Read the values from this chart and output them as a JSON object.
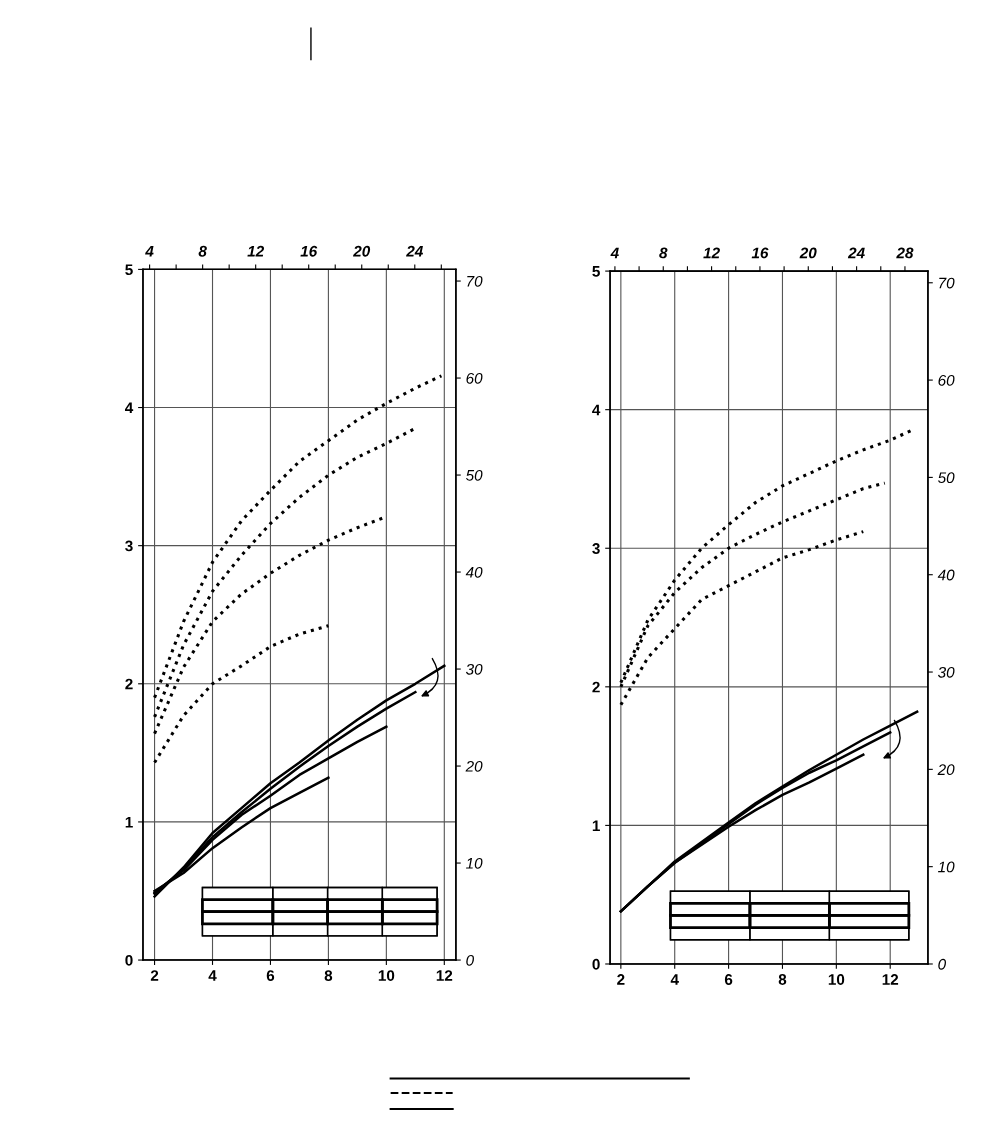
{
  "chart_data": [
    {
      "type": "line",
      "line_style": "solid",
      "marker": "none",
      "grid": true,
      "xlim": [
        1.6,
        12.4
      ],
      "xticks": [
        2,
        4,
        6,
        8,
        10,
        12
      ],
      "ylim": [
        0,
        5
      ],
      "yticks": [
        0,
        1,
        2,
        3,
        4,
        5
      ],
      "x2lim": [
        3.5,
        27.1
      ],
      "x2ticks": [
        4,
        {
          "value": 6,
          "label": null
        },
        8,
        {
          "value": 10,
          "label": null
        },
        12,
        {
          "value": 14,
          "label": null
        },
        16,
        {
          "value": 18,
          "label": null
        },
        20,
        {
          "value": 22,
          "label": null
        },
        24,
        {
          "value": 26,
          "label": null
        }
      ],
      "y2lim": [
        0,
        71.2
      ],
      "y2ticks": [
        0,
        10,
        20,
        30,
        40,
        50,
        60,
        70
      ],
      "series": [
        {
          "color": "#000000",
          "line_style": "dotted",
          "x": [
            2,
            3,
            4,
            5,
            6,
            7,
            8,
            9,
            10,
            11,
            11.9
          ],
          "values": [
            1.9,
            2.45,
            2.88,
            3.18,
            3.4,
            3.61,
            3.76,
            3.91,
            4.03,
            4.14,
            4.23
          ]
        },
        {
          "color": "#000000",
          "line_style": "dotted",
          "x": [
            2,
            3,
            4,
            5,
            6,
            7,
            8,
            9,
            10,
            11
          ],
          "values": [
            1.76,
            2.28,
            2.67,
            2.93,
            3.16,
            3.35,
            3.51,
            3.64,
            3.74,
            3.85
          ]
        },
        {
          "color": "#000000",
          "line_style": "dotted",
          "x": [
            2,
            3,
            4,
            5,
            6,
            7,
            8,
            9,
            10
          ],
          "values": [
            1.64,
            2.12,
            2.45,
            2.65,
            2.8,
            2.93,
            3.04,
            3.13,
            3.21
          ]
        },
        {
          "color": "#000000",
          "line_style": "dotted",
          "x": [
            2,
            3,
            4,
            5,
            6,
            7,
            8
          ],
          "values": [
            1.43,
            1.77,
            2.0,
            2.13,
            2.27,
            2.36,
            2.42
          ]
        },
        {
          "color": "#000000",
          "x": [
            2,
            3,
            4,
            5,
            6,
            7,
            8,
            9,
            10,
            11,
            12
          ],
          "values": [
            0.46,
            0.67,
            0.92,
            1.1,
            1.28,
            1.43,
            1.59,
            1.74,
            1.88,
            2.0,
            2.13
          ]
        },
        {
          "color": "#000000",
          "x": [
            2,
            3,
            4,
            5,
            6,
            7,
            8,
            9,
            10,
            11
          ],
          "values": [
            0.48,
            0.66,
            0.89,
            1.07,
            1.24,
            1.4,
            1.55,
            1.69,
            1.82,
            1.94
          ]
        },
        {
          "color": "#000000",
          "x": [
            2,
            3,
            4,
            5,
            6,
            7,
            8,
            9,
            10
          ],
          "values": [
            0.49,
            0.65,
            0.87,
            1.05,
            1.19,
            1.34,
            1.46,
            1.58,
            1.69
          ]
        },
        {
          "color": "#000000",
          "x": [
            2,
            3,
            4,
            5,
            6,
            7,
            8
          ],
          "values": [
            0.5,
            0.63,
            0.81,
            0.96,
            1.1,
            1.21,
            1.32
          ]
        }
      ]
    },
    {
      "type": "line",
      "line_style": "solid",
      "marker": "none",
      "grid": true,
      "xlim": [
        1.6,
        13.4
      ],
      "xticks": [
        2,
        4,
        6,
        8,
        10,
        12
      ],
      "ylim": [
        0,
        5
      ],
      "yticks": [
        0,
        1,
        2,
        3,
        4,
        5
      ],
      "x2lim": [
        3.6,
        29.9
      ],
      "x2ticks": [
        4,
        {
          "value": 6,
          "label": null
        },
        8,
        {
          "value": 10,
          "label": null
        },
        12,
        {
          "value": 14,
          "label": null
        },
        16,
        {
          "value": 18,
          "label": null
        },
        20,
        {
          "value": 22,
          "label": null
        },
        24,
        {
          "value": 26,
          "label": null
        },
        28
      ],
      "y2lim": [
        0,
        71.2
      ],
      "y2ticks": [
        0,
        10,
        20,
        30,
        40,
        50,
        60,
        70
      ],
      "series": [
        {
          "color": "#000000",
          "line_style": "dotted",
          "x": [
            2,
            3,
            4,
            5,
            6,
            7,
            8,
            9,
            10,
            11,
            12,
            12.9
          ],
          "values": [
            2.03,
            2.48,
            2.77,
            3.0,
            3.17,
            3.33,
            3.45,
            3.54,
            3.63,
            3.71,
            3.78,
            3.86
          ]
        },
        {
          "color": "#000000",
          "line_style": "dotted",
          "x": [
            2,
            3,
            4,
            5,
            6,
            7,
            8,
            9,
            10,
            11,
            11.8
          ],
          "values": [
            2.0,
            2.44,
            2.68,
            2.86,
            3.0,
            3.1,
            3.19,
            3.27,
            3.35,
            3.43,
            3.47
          ]
        },
        {
          "color": "#000000",
          "line_style": "dotted",
          "x": [
            2,
            3,
            4,
            5,
            6,
            7,
            8,
            9,
            10,
            11
          ],
          "values": [
            1.87,
            2.21,
            2.42,
            2.63,
            2.73,
            2.83,
            2.93,
            2.99,
            3.06,
            3.12
          ]
        },
        {
          "color": "#000000",
          "x": [
            2,
            3,
            4,
            5,
            6,
            7,
            8,
            9,
            10,
            11,
            12,
            13
          ],
          "values": [
            0.38,
            0.56,
            0.74,
            0.88,
            1.02,
            1.16,
            1.28,
            1.4,
            1.51,
            1.62,
            1.72,
            1.82
          ]
        },
        {
          "color": "#000000",
          "x": [
            2,
            3,
            4,
            5,
            6,
            7,
            8,
            9,
            10,
            11,
            12
          ],
          "values": [
            0.38,
            0.56,
            0.73,
            0.87,
            1.01,
            1.15,
            1.27,
            1.38,
            1.47,
            1.57,
            1.67
          ]
        },
        {
          "color": "#000000",
          "x": [
            2,
            3,
            4,
            5,
            6,
            7,
            8,
            9,
            10,
            11
          ],
          "values": [
            0.38,
            0.56,
            0.73,
            0.86,
            0.99,
            1.11,
            1.22,
            1.31,
            1.41,
            1.51
          ]
        }
      ]
    }
  ]
}
